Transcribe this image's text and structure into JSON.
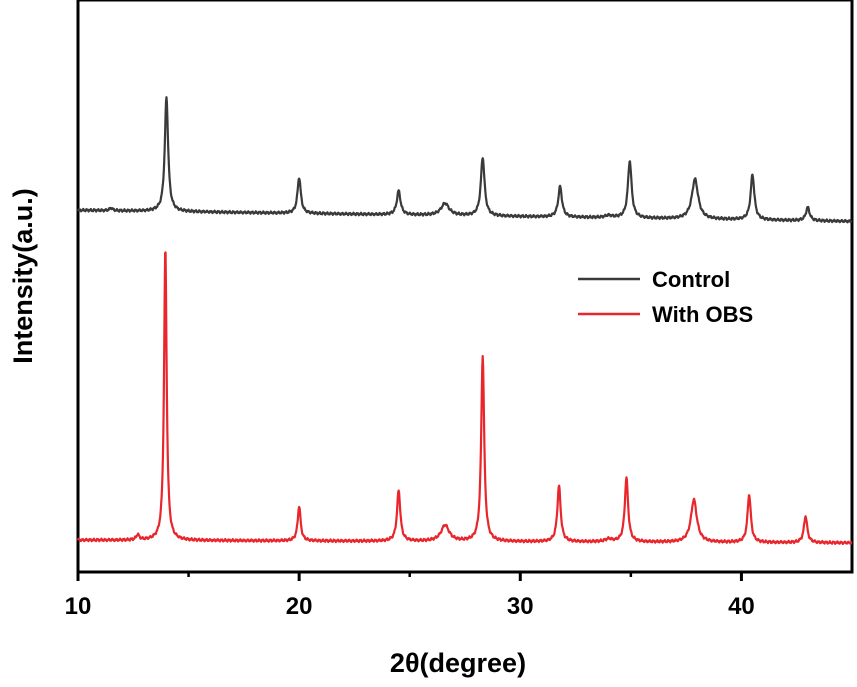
{
  "chart_data": {
    "type": "line",
    "title": "",
    "xlabel": "2θ(degree)",
    "ylabel": "Intensity(a.u.)",
    "xlim": [
      10,
      45
    ],
    "ylim": [
      0,
      2.15
    ],
    "xticks": [
      10,
      20,
      30,
      40
    ],
    "xtick_labels": [
      "10",
      "20",
      "30",
      "40"
    ],
    "y_ticks_shown": false,
    "legend_position": "right",
    "series": [
      {
        "name": "Control",
        "color": "#3a3a3a",
        "baseline": 1.36,
        "slope": -0.0012,
        "peaks": [
          {
            "x": 11.5,
            "h": 0.01,
            "w": 0.08
          },
          {
            "x": 14.0,
            "h": 0.43,
            "w": 0.09
          },
          {
            "x": 20.0,
            "h": 0.135,
            "w": 0.09
          },
          {
            "x": 24.5,
            "h": 0.09,
            "w": 0.1
          },
          {
            "x": 26.6,
            "h": 0.045,
            "w": 0.22
          },
          {
            "x": 28.3,
            "h": 0.22,
            "w": 0.1
          },
          {
            "x": 31.8,
            "h": 0.115,
            "w": 0.1
          },
          {
            "x": 34.0,
            "h": 0.008,
            "w": 0.2
          },
          {
            "x": 34.95,
            "h": 0.215,
            "w": 0.1
          },
          {
            "x": 37.9,
            "h": 0.15,
            "w": 0.17
          },
          {
            "x": 40.5,
            "h": 0.17,
            "w": 0.1
          },
          {
            "x": 43.0,
            "h": 0.05,
            "w": 0.1
          }
        ]
      },
      {
        "name": "With OBS",
        "color": "#e8262b",
        "baseline": 0.12,
        "slope": -0.0003,
        "peaks": [
          {
            "x": 12.7,
            "h": 0.02,
            "w": 0.08
          },
          {
            "x": 13.95,
            "h": 1.1,
            "w": 0.07
          },
          {
            "x": 20.0,
            "h": 0.13,
            "w": 0.08
          },
          {
            "x": 24.5,
            "h": 0.19,
            "w": 0.09
          },
          {
            "x": 26.6,
            "h": 0.06,
            "w": 0.22
          },
          {
            "x": 28.3,
            "h": 0.7,
            "w": 0.08
          },
          {
            "x": 31.75,
            "h": 0.21,
            "w": 0.09
          },
          {
            "x": 34.0,
            "h": 0.01,
            "w": 0.2
          },
          {
            "x": 34.8,
            "h": 0.24,
            "w": 0.09
          },
          {
            "x": 37.85,
            "h": 0.16,
            "w": 0.16
          },
          {
            "x": 40.35,
            "h": 0.18,
            "w": 0.09
          },
          {
            "x": 42.9,
            "h": 0.1,
            "w": 0.09
          }
        ]
      }
    ]
  }
}
